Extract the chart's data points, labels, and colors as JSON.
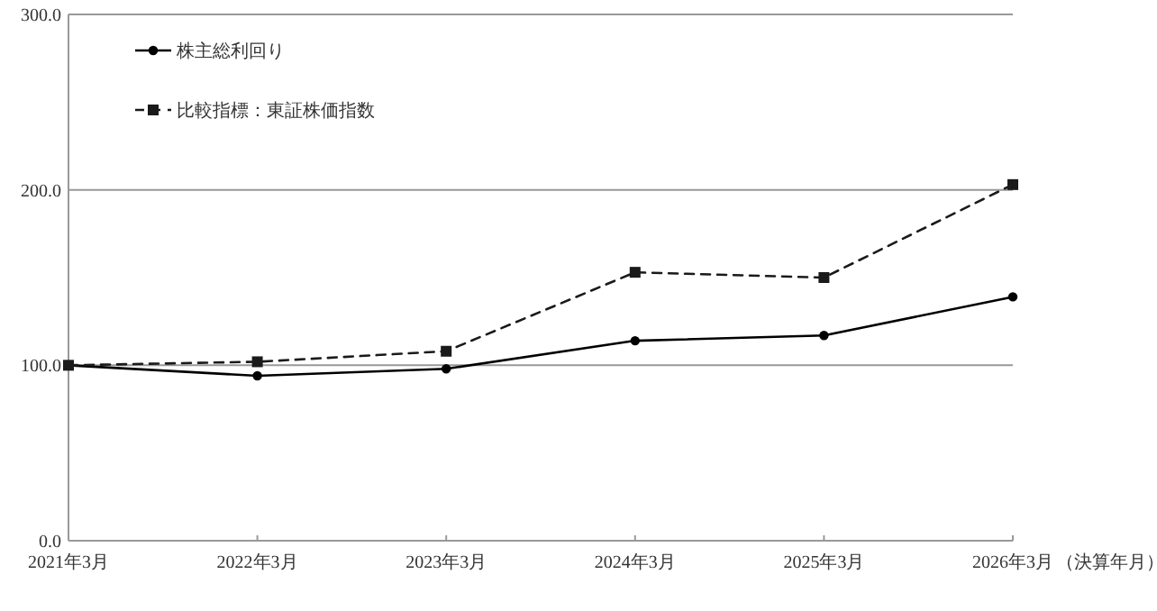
{
  "chart_data": {
    "type": "line",
    "xlabel": "（決算年月）",
    "categories": [
      "2021年3月",
      "2022年3月",
      "2023年3月",
      "2024年3月",
      "2025年3月",
      "2026年3月"
    ],
    "series": [
      {
        "name": "株主総利回り",
        "color": "#000000",
        "marker": "circle",
        "line_style": "solid",
        "values": [
          100,
          94,
          98,
          114,
          117,
          139
        ]
      },
      {
        "name": "比較指標：東証株価指数",
        "color": "#1a1a1a",
        "marker": "square",
        "line_style": "dashed",
        "values": [
          100,
          102,
          108,
          153,
          150,
          203
        ]
      }
    ],
    "ylim": [
      0,
      300
    ],
    "yticks": [
      {
        "value": 0,
        "label": "0.0"
      },
      {
        "value": 100,
        "label": "100.0"
      },
      {
        "value": 200,
        "label": "200.0"
      },
      {
        "value": 300,
        "label": "300.0"
      }
    ],
    "grid": "y",
    "legend": "top left"
  }
}
